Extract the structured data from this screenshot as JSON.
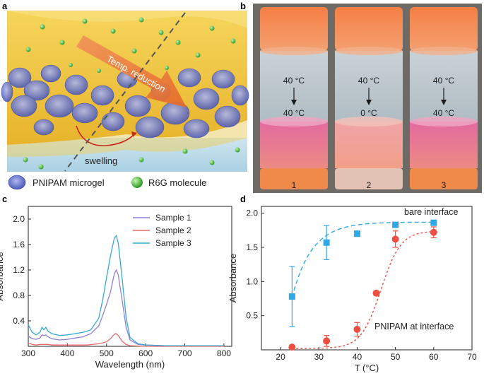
{
  "panel_a": {
    "letter": "a",
    "arrow_label": "Temp. reduction",
    "swelling_label": "swelling",
    "legend": {
      "microgel": "PNIPAM microgel",
      "molecule": "R6G molecule"
    }
  },
  "panel_b": {
    "letter": "b",
    "vials": [
      {
        "index": "1",
        "top_temp": "40 °C",
        "bottom_temp": "40 °C"
      },
      {
        "index": "2",
        "top_temp": "40 °C",
        "bottom_temp": "0 °C"
      },
      {
        "index": "3",
        "top_temp": "40 °C",
        "bottom_temp": "40 °C"
      }
    ]
  },
  "colors": {
    "sample1": "#8f7fd6",
    "sample2": "#e8686c",
    "sample3": "#36a9cf",
    "bare": "#2fa8e6",
    "pnipam": "#ef4f43",
    "oil": "#f2c23a",
    "water": "#b9dcea",
    "microgel": "#7a86d6",
    "r6g": "#58c848",
    "vial_orange": "#f08a4a",
    "vial_pink": "#e27aa6"
  },
  "chart_data": [
    {
      "id": "c",
      "letter": "c",
      "type": "line",
      "xlabel": "Wavelength (nm)",
      "ylabel": "Absorbance",
      "xlim": [
        300,
        820
      ],
      "ylim": [
        0,
        2.2
      ],
      "xticks": [
        300,
        400,
        500,
        600,
        700,
        800
      ],
      "yticks": [
        0.4,
        0.8,
        1.2,
        1.6,
        2.0
      ],
      "xtick_labels": [
        "300",
        "400",
        "500",
        "600",
        "700",
        "800"
      ],
      "ytick_labels": [
        "0.4",
        "0.8",
        "1.2",
        "1.6",
        "2.0"
      ],
      "legend": {
        "placement": "top-right"
      },
      "series": [
        {
          "name": "Sample 1",
          "x": [
            300,
            310,
            320,
            330,
            335,
            340,
            345,
            350,
            360,
            380,
            400,
            420,
            440,
            460,
            480,
            490,
            500,
            510,
            520,
            525,
            530,
            540,
            550,
            560,
            580,
            600,
            650,
            700,
            750,
            800
          ],
          "y": [
            0.16,
            0.12,
            0.11,
            0.13,
            0.18,
            0.17,
            0.18,
            0.15,
            0.12,
            0.1,
            0.11,
            0.13,
            0.15,
            0.2,
            0.32,
            0.48,
            0.66,
            0.85,
            1.14,
            1.2,
            1.12,
            0.72,
            0.3,
            0.1,
            0.03,
            0.02,
            0.01,
            0.01,
            0.01,
            0.01
          ]
        },
        {
          "name": "Sample 2",
          "x": [
            300,
            310,
            320,
            330,
            340,
            350,
            360,
            400,
            450,
            480,
            500,
            510,
            520,
            525,
            530,
            540,
            550,
            560,
            600,
            700,
            800
          ],
          "y": [
            0.05,
            0.03,
            0.02,
            0.03,
            0.03,
            0.03,
            0.02,
            0.02,
            0.02,
            0.04,
            0.07,
            0.12,
            0.19,
            0.2,
            0.17,
            0.08,
            0.03,
            0.01,
            0.0,
            0.0,
            0.0
          ]
        },
        {
          "name": "Sample 3",
          "x": [
            300,
            310,
            320,
            330,
            335,
            340,
            345,
            350,
            360,
            380,
            400,
            420,
            440,
            460,
            480,
            490,
            500,
            510,
            520,
            525,
            530,
            540,
            550,
            560,
            580,
            600,
            650,
            700,
            750,
            800
          ],
          "y": [
            0.34,
            0.22,
            0.18,
            0.22,
            0.3,
            0.26,
            0.3,
            0.24,
            0.2,
            0.17,
            0.18,
            0.2,
            0.22,
            0.26,
            0.44,
            0.72,
            1.08,
            1.42,
            1.7,
            1.74,
            1.62,
            1.06,
            0.45,
            0.14,
            0.04,
            0.02,
            0.01,
            0.01,
            0.01,
            0.01
          ]
        }
      ]
    },
    {
      "id": "d",
      "letter": "d",
      "type": "scatter",
      "xlabel": "T (°C)",
      "ylabel": "Absorbance",
      "xlim": [
        15,
        70
      ],
      "ylim": [
        0,
        2.1
      ],
      "xticks": [
        20,
        30,
        40,
        50,
        60,
        70
      ],
      "yticks": [
        0.5,
        1.0,
        1.5,
        2.0
      ],
      "xtick_labels": [
        "20",
        "30",
        "40",
        "50",
        "60",
        "70"
      ],
      "ytick_labels": [
        "0.5",
        "1.0",
        "1.5",
        "2.0"
      ],
      "series": [
        {
          "name": "bare interface",
          "marker": "square",
          "x": [
            23,
            32,
            40,
            50,
            60
          ],
          "y": [
            0.78,
            1.57,
            1.7,
            1.83,
            1.86
          ],
          "err": [
            0.44,
            0.25,
            0.04,
            0.03,
            0.03
          ]
        },
        {
          "name": "PNIPAM at interface",
          "marker": "circle",
          "x": [
            23,
            32,
            40,
            45,
            50,
            60
          ],
          "y": [
            0.04,
            0.13,
            0.3,
            0.83,
            1.62,
            1.72
          ],
          "err": [
            0.02,
            0.08,
            0.1,
            0.03,
            0.12,
            0.08
          ]
        }
      ]
    }
  ]
}
